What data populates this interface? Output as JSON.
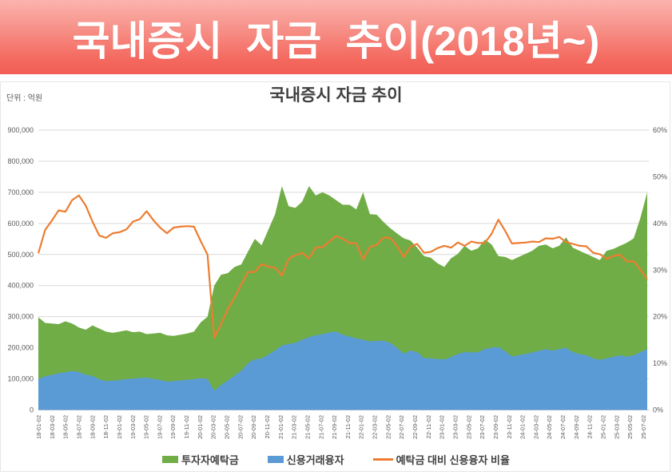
{
  "banner": {
    "title": "국내증시 자금 추이(2018년~)",
    "bg_top": "#fbb4ae",
    "bg_bottom": "#f15e56",
    "text_color": "#ffffff"
  },
  "chart": {
    "title": "국내증시 자금 추이",
    "unit_label": "단위 : 억원",
    "left_axis": {
      "ticks": [
        "0",
        "100,000",
        "200,000",
        "300,000",
        "400,000",
        "500,000",
        "600,000",
        "700,000",
        "800,000",
        "900,000"
      ],
      "min": 0,
      "max": 900000
    },
    "right_axis": {
      "ticks": [
        "0%",
        "10%",
        "20%",
        "30%",
        "40%",
        "50%",
        "60%"
      ],
      "min": 0,
      "max": 60
    },
    "x_tick_labels": [
      "18-01-02",
      "18-03-02",
      "18-05-02",
      "18-07-02",
      "18-09-02",
      "18-11-02",
      "19-01-02",
      "19-03-02",
      "19-05-02",
      "19-07-02",
      "19-09-02",
      "19-11-02",
      "20-01-02",
      "20-03-02",
      "20-05-02",
      "20-07-02",
      "20-09-02",
      "20-11-02",
      "21-01-02",
      "21-03-02",
      "21-05-02",
      "21-07-02",
      "21-09-02",
      "21-11-02",
      "22-01-02",
      "22-03-02",
      "22-05-02",
      "22-07-02",
      "22-09-02",
      "22-11-02",
      "23-01-02",
      "23-03-02",
      "23-05-02",
      "23-07-02",
      "23-09-02",
      "23-11-02",
      "24-01-02",
      "24-03-02",
      "24-05-02",
      "24-07-02",
      "24-09-02",
      "24-11-02",
      "25-01-02",
      "25-03-02",
      "25-05-02",
      "25-07-02"
    ],
    "legend": [
      {
        "label": "투자자예탁금"
      },
      {
        "label": "신용거래융자"
      },
      {
        "label": "예탁금 대비 신용융자 비율"
      }
    ],
    "colors": {
      "grid": "#d9d9d9",
      "axis_text": "#595959"
    }
  },
  "chart_data": {
    "type": "area+line",
    "title": "국내증시 자금 추이",
    "x": [
      "18-01",
      "18-02",
      "18-03",
      "18-04",
      "18-05",
      "18-06",
      "18-07",
      "18-08",
      "18-09",
      "18-10",
      "18-11",
      "18-12",
      "19-01",
      "19-02",
      "19-03",
      "19-04",
      "19-05",
      "19-06",
      "19-07",
      "19-08",
      "19-09",
      "19-10",
      "19-11",
      "19-12",
      "20-01",
      "20-02",
      "20-03",
      "20-04",
      "20-05",
      "20-06",
      "20-07",
      "20-08",
      "20-09",
      "20-10",
      "20-11",
      "20-12",
      "21-01",
      "21-02",
      "21-03",
      "21-04",
      "21-05",
      "21-06",
      "21-07",
      "21-08",
      "21-09",
      "21-10",
      "21-11",
      "21-12",
      "22-01",
      "22-02",
      "22-03",
      "22-04",
      "22-05",
      "22-06",
      "22-07",
      "22-08",
      "22-09",
      "22-10",
      "22-11",
      "22-12",
      "23-01",
      "23-02",
      "23-03",
      "23-04",
      "23-05",
      "23-06",
      "23-07",
      "23-08",
      "23-09",
      "23-10",
      "23-11",
      "23-12",
      "24-01",
      "24-02",
      "24-03",
      "24-04",
      "24-05",
      "24-06",
      "24-07",
      "24-08",
      "24-09",
      "24-10",
      "24-11",
      "24-12",
      "25-01",
      "25-02",
      "25-03",
      "25-04",
      "25-05",
      "25-06",
      "25-07"
    ],
    "ylim_left": [
      0,
      900000
    ],
    "ylim_right": [
      0,
      60
    ],
    "grid": true,
    "legend_position": "bottom",
    "series": [
      {
        "name": "투자자예탁금",
        "type": "area",
        "axis": "left",
        "color": "#70AD47",
        "values": [
          298000,
          280000,
          278000,
          276000,
          285000,
          278000,
          265000,
          258000,
          272000,
          262000,
          252000,
          248000,
          252000,
          256000,
          250000,
          252000,
          244000,
          246000,
          248000,
          240000,
          238000,
          242000,
          246000,
          252000,
          282000,
          300000,
          400000,
          435000,
          440000,
          460000,
          468000,
          510000,
          550000,
          530000,
          580000,
          630000,
          720000,
          655000,
          650000,
          670000,
          720000,
          690000,
          700000,
          690000,
          675000,
          660000,
          660000,
          645000,
          700000,
          630000,
          628000,
          605000,
          585000,
          568000,
          552000,
          545000,
          522000,
          495000,
          490000,
          472000,
          460000,
          488000,
          502000,
          528000,
          512000,
          520000,
          548000,
          532000,
          495000,
          492000,
          482000,
          492000,
          502000,
          512000,
          528000,
          532000,
          520000,
          528000,
          555000,
          522000,
          512000,
          502000,
          492000,
          482000,
          512000,
          518000,
          528000,
          538000,
          552000,
          618000,
          700000
        ]
      },
      {
        "name": "신용거래융자",
        "type": "area",
        "axis": "left",
        "color": "#5B9BD5",
        "values": [
          100000,
          108000,
          113000,
          118000,
          121000,
          125000,
          122000,
          113000,
          110000,
          98000,
          93000,
          94000,
          96000,
          99000,
          101000,
          103000,
          104000,
          100000,
          97000,
          91000,
          93000,
          95000,
          97000,
          99000,
          102000,
          100000,
          62000,
          80000,
          95000,
          111000,
          126000,
          151000,
          163000,
          166000,
          178000,
          192000,
          207000,
          212000,
          216000,
          226000,
          234000,
          240000,
          244000,
          249000,
          252000,
          242000,
          236000,
          230000,
          226000,
          220000,
          222000,
          223000,
          216000,
          200000,
          181000,
          191000,
          186000,
          167000,
          166000,
          164000,
          162000,
          170000,
          180000,
          186000,
          185000,
          186000,
          196000,
          201000,
          202000,
          189000,
          172000,
          176000,
          180000,
          185000,
          190000,
          196000,
          191000,
          196000,
          200000,
          186000,
          180000,
          176000,
          166000,
          161000,
          166000,
          171000,
          176000,
          171000,
          176000,
          186000,
          196000
        ]
      },
      {
        "name": "예탁금 대비 신용융자 비율",
        "type": "line",
        "axis": "right",
        "color": "#ED7D31",
        "values": [
          33.6,
          38.6,
          40.6,
          42.8,
          42.5,
          45.0,
          46.0,
          43.8,
          40.4,
          37.4,
          36.9,
          37.9,
          38.1,
          38.7,
          40.4,
          40.9,
          42.6,
          40.7,
          39.1,
          37.9,
          39.1,
          39.3,
          39.4,
          39.3,
          36.2,
          33.3,
          15.5,
          18.4,
          21.6,
          24.1,
          26.9,
          29.6,
          29.6,
          31.3,
          30.7,
          30.5,
          28.8,
          32.4,
          33.2,
          33.7,
          32.5,
          34.8,
          34.9,
          36.1,
          37.3,
          36.7,
          35.8,
          35.7,
          32.3,
          34.9,
          35.4,
          36.9,
          36.9,
          35.2,
          32.8,
          35.0,
          35.6,
          33.7,
          33.9,
          34.7,
          35.2,
          34.8,
          35.9,
          35.2,
          36.1,
          35.8,
          35.8,
          37.8,
          40.8,
          38.4,
          35.7,
          35.8,
          35.9,
          36.1,
          36.0,
          36.8,
          36.7,
          37.1,
          36.0,
          35.6,
          35.2,
          35.1,
          33.7,
          33.4,
          32.4,
          33.0,
          33.3,
          31.8,
          31.9,
          30.1,
          28.0
        ]
      }
    ]
  }
}
